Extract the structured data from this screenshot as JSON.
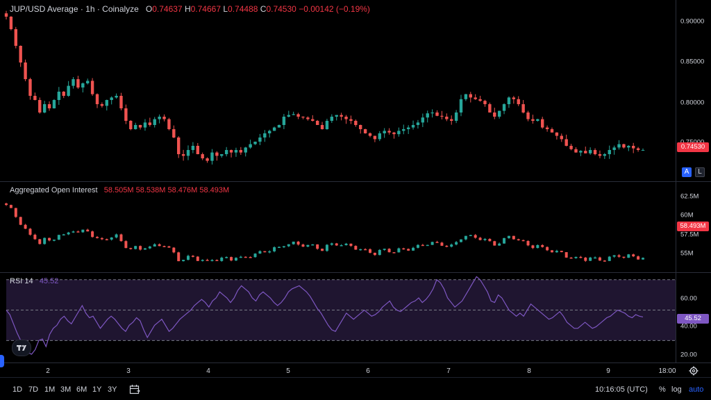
{
  "main_legend": {
    "title": "JUP/USD Average · 1h · Coinalyze",
    "o_label": "O",
    "o": "0.74637",
    "h_label": "H",
    "h": "0.74667",
    "l_label": "L",
    "l": "0.74488",
    "c_label": "C",
    "c": "0.74530",
    "change": "−0.00142 (−0.19%)"
  },
  "oi_legend": {
    "title": "Aggregated Open Interest",
    "values": [
      "58.505M",
      "58.538M",
      "58.476M",
      "58.493M"
    ]
  },
  "rsi_legend": {
    "title": "RSI 14",
    "value": "45.52"
  },
  "price_axis": {
    "ticks": [
      "0.90000",
      "0.85000",
      "0.80000",
      "0.75000"
    ],
    "current": "0.74530"
  },
  "oi_axis": {
    "ticks": [
      "62.5M",
      "60M",
      "57.5M",
      "55M"
    ],
    "current": "58.493M"
  },
  "rsi_axis": {
    "ticks": [
      "60.00",
      "40.00",
      "20.00"
    ],
    "current": "45.52"
  },
  "scale_buttons": {
    "auto_label": "A",
    "log_label": "L"
  },
  "time_axis": {
    "labels": [
      "2",
      "3",
      "4",
      "5",
      "6",
      "7",
      "8",
      "9",
      "18:00"
    ]
  },
  "bottom_bar": {
    "timeframes": [
      "1D",
      "7D",
      "1M",
      "3M",
      "6M",
      "1Y",
      "3Y"
    ],
    "clock": "10:16:05 (UTC)",
    "percent": "%",
    "log": "log",
    "auto": "auto"
  },
  "colors": {
    "up": "#26a69a",
    "down": "#ef5350",
    "rsi_line": "#7e57c2",
    "rsi_band": "#1f1530",
    "grid": "#2a2e39",
    "accent": "#2962ff"
  },
  "chart_data": [
    {
      "type": "candlestick",
      "title": "JUP/USD Average · 1h · Coinalyze",
      "x_ticks": [
        "2",
        "3",
        "4",
        "5",
        "6",
        "7",
        "8",
        "9",
        "18:00"
      ],
      "y_ticks": [
        0.9,
        0.85,
        0.8,
        0.75
      ],
      "ylim": [
        0.715,
        0.91
      ],
      "last_close": 0.7453,
      "close": [
        0.905,
        0.89,
        0.87,
        0.85,
        0.83,
        0.81,
        0.805,
        0.79,
        0.8,
        0.795,
        0.805,
        0.815,
        0.81,
        0.822,
        0.83,
        0.82,
        0.825,
        0.828,
        0.812,
        0.8,
        0.798,
        0.805,
        0.808,
        0.81,
        0.795,
        0.78,
        0.77,
        0.775,
        0.772,
        0.778,
        0.775,
        0.782,
        0.785,
        0.782,
        0.77,
        0.76,
        0.74,
        0.738,
        0.745,
        0.75,
        0.74,
        0.735,
        0.732,
        0.742,
        0.738,
        0.74,
        0.745,
        0.742,
        0.745,
        0.742,
        0.748,
        0.752,
        0.755,
        0.76,
        0.765,
        0.768,
        0.772,
        0.775,
        0.785,
        0.787,
        0.788,
        0.785,
        0.784,
        0.782,
        0.78,
        0.775,
        0.77,
        0.78,
        0.785,
        0.787,
        0.785,
        0.782,
        0.78,
        0.775,
        0.77,
        0.765,
        0.762,
        0.758,
        0.765,
        0.768,
        0.766,
        0.764,
        0.768,
        0.77,
        0.772,
        0.775,
        0.778,
        0.784,
        0.789,
        0.79,
        0.786,
        0.785,
        0.782,
        0.78,
        0.79,
        0.806,
        0.812,
        0.808,
        0.806,
        0.804,
        0.8,
        0.79,
        0.785,
        0.792,
        0.8,
        0.808,
        0.806,
        0.8,
        0.79,
        0.782,
        0.78,
        0.782,
        0.772,
        0.77,
        0.766,
        0.762,
        0.758,
        0.75,
        0.746,
        0.742,
        0.744,
        0.741,
        0.745,
        0.74,
        0.738,
        0.74,
        0.745,
        0.748,
        0.752,
        0.748,
        0.75,
        0.747,
        0.745,
        0.745
      ]
    },
    {
      "type": "candlestick",
      "title": "Aggregated Open Interest",
      "y_ticks": [
        "62.5M",
        "60M",
        "57.5M",
        "55M"
      ],
      "ylim": [
        54,
        64
      ],
      "last_close": 58.493
    },
    {
      "type": "line",
      "title": "RSI 14",
      "y_ticks": [
        60,
        40,
        20
      ],
      "ylim": [
        16,
        74
      ],
      "band": [
        30,
        70
      ],
      "mid": 50,
      "last_value": 45.52,
      "values": [
        50,
        47,
        41,
        35,
        30,
        25,
        22,
        21,
        24,
        30,
        31,
        26,
        34,
        38,
        40,
        44,
        46,
        43,
        41,
        45,
        49,
        53,
        48,
        45,
        46,
        42,
        38,
        41,
        44,
        46,
        44,
        41,
        38,
        36,
        40,
        42,
        45,
        43,
        37,
        32,
        36,
        40,
        42,
        44,
        40,
        36,
        38,
        41,
        44,
        46,
        48,
        50,
        53,
        55,
        57,
        55,
        52,
        56,
        58,
        62,
        60,
        58,
        55,
        58,
        63,
        66,
        64,
        62,
        58,
        56,
        60,
        62,
        60,
        58,
        55,
        53,
        55,
        58,
        62,
        64,
        65,
        66,
        64,
        62,
        59,
        55,
        51,
        48,
        44,
        40,
        37,
        36,
        40,
        44,
        48,
        46,
        44,
        46,
        48,
        50,
        48,
        46,
        47,
        49,
        52,
        54,
        56,
        52,
        50,
        49,
        51,
        53,
        55,
        56,
        58,
        55,
        57,
        60,
        64,
        70,
        68,
        64,
        58,
        55,
        52,
        54,
        56,
        60,
        64,
        68,
        72,
        70,
        66,
        62,
        56,
        55,
        60,
        58,
        54,
        50,
        48,
        46,
        48,
        46,
        50,
        54,
        52,
        50,
        48,
        46,
        44,
        45,
        47,
        49,
        46,
        42,
        40,
        38,
        38,
        40,
        42,
        40,
        38,
        39,
        41,
        43,
        45,
        46,
        48,
        50,
        49,
        48,
        46,
        45,
        47,
        46,
        45.5
      ]
    }
  ]
}
